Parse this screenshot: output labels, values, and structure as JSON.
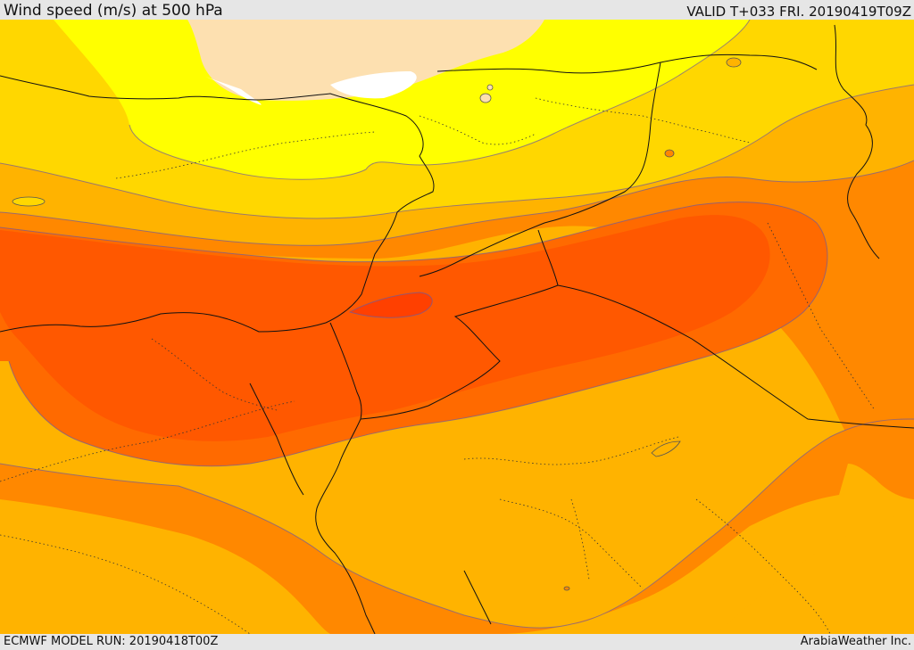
{
  "header": {
    "title": "Wind speed (m/s) at 500 hPa",
    "valid": "VALID T+033 FRI. 20190419T09Z"
  },
  "footer": {
    "model_run": "ECMWF MODEL RUN: 20190418T00Z",
    "brand": "ArabiaWeather Inc."
  },
  "map": {
    "region": "Eastern Mediterranean / Middle East",
    "variable": "wind speed at 500 hPa",
    "color_scale": [
      "#ffffff",
      "#fde0b0",
      "#ffff00",
      "#ffd700",
      "#ffb300",
      "#ff8800",
      "#ff6a00",
      "#ff5800",
      "#ff4000"
    ],
    "overlays": [
      "coastlines",
      "country-borders",
      "province-borders"
    ]
  }
}
